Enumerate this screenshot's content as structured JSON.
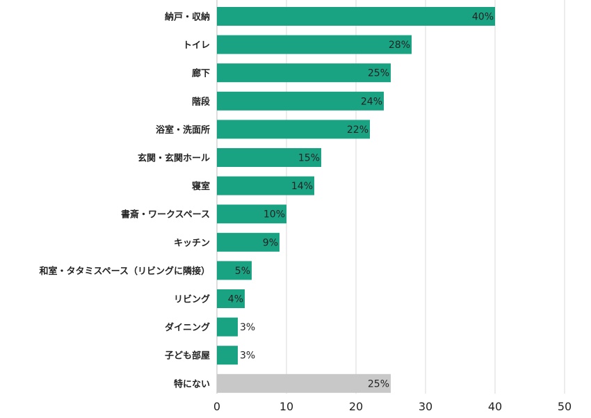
{
  "chart_data": {
    "type": "bar",
    "orientation": "horizontal",
    "categories": [
      "納戸・収納",
      "トイレ",
      "廊下",
      "階段",
      "浴室・洗面所",
      "玄関・玄関ホール",
      "寝室",
      "書斎・ワークスペース",
      "キッチン",
      "和室・タタミスペース（リビングに隣接）",
      "リビング",
      "ダイニング",
      "子ども部屋",
      "特にない"
    ],
    "values": [
      40,
      28,
      25,
      24,
      22,
      15,
      14,
      10,
      9,
      5,
      4,
      3,
      3,
      25
    ],
    "value_labels": [
      "40%",
      "28%",
      "25%",
      "24%",
      "22%",
      "15%",
      "14%",
      "10%",
      "9%",
      "5%",
      "4%",
      "3%",
      "3%",
      "25%"
    ],
    "bar_colors": [
      "#1aa383",
      "#1aa383",
      "#1aa383",
      "#1aa383",
      "#1aa383",
      "#1aa383",
      "#1aa383",
      "#1aa383",
      "#1aa383",
      "#1aa383",
      "#1aa383",
      "#1aa383",
      "#1aa383",
      "#c8c8c8"
    ],
    "xlim": [
      0,
      50
    ],
    "xticks": [
      0,
      10,
      20,
      30,
      40,
      50
    ],
    "grid": "vertical",
    "title": "",
    "xlabel": "",
    "ylabel": ""
  }
}
